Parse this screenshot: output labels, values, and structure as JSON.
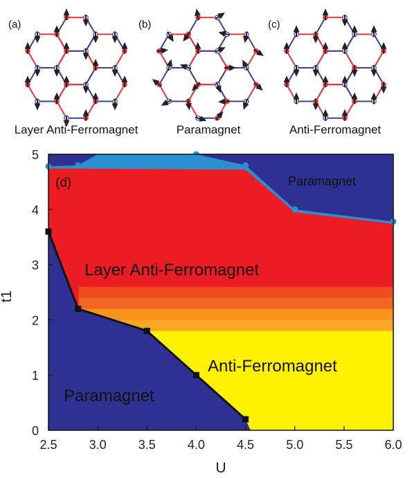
{
  "panels": [
    {
      "letter": "(a)",
      "caption": "Layer Anti-Ferromagnet"
    },
    {
      "letter": "(b)",
      "caption": "Paramagnet"
    },
    {
      "letter": "(c)",
      "caption": "Anti-Ferromagnet"
    }
  ],
  "colors": {
    "paramagnet": "#2e3192",
    "layer_afm": "#ec1c24",
    "afm": "#fff200",
    "boundary_blue": "#2b8fd0",
    "lattice_red": "#e8333b",
    "lattice_blue": "#3b3f9a",
    "gradient": [
      "#f04a23",
      "#f26522",
      "#f7941d",
      "#f9a825"
    ]
  },
  "chart_data": {
    "type": "area",
    "panel_label": "(d)",
    "xlabel": "U",
    "ylabel": "t1",
    "xlim": [
      2.5,
      6.0
    ],
    "ylim": [
      0,
      5
    ],
    "xticks": [
      "2.5",
      "3.0",
      "3.5",
      "4.0",
      "4.5",
      "5.0",
      "5.5",
      "6.0"
    ],
    "yticks": [
      "0",
      "1",
      "2",
      "3",
      "4",
      "5"
    ],
    "region_labels": {
      "layer_afm": "Layer Anti-Ferromagnet",
      "afm": "Anti-Ferromagnet",
      "para_low": "Paramagnet",
      "para_high": "Paramagnet"
    },
    "lower_boundary": [
      {
        "U": 2.5,
        "t1": 3.6
      },
      {
        "U": 2.8,
        "t1": 2.2
      },
      {
        "U": 3.5,
        "t1": 1.8
      },
      {
        "U": 4.0,
        "t1": 1.0
      },
      {
        "U": 4.5,
        "t1": 0.2
      }
    ],
    "upper_boundary": [
      {
        "U": 2.5,
        "t1": 4.78
      },
      {
        "U": 2.8,
        "t1": 4.8
      },
      {
        "U": 3.0,
        "t1": 5.0
      },
      {
        "U": 4.0,
        "t1": 5.0
      },
      {
        "U": 4.5,
        "t1": 4.8
      },
      {
        "U": 5.0,
        "t1": 4.0
      },
      {
        "U": 6.0,
        "t1": 3.78
      }
    ],
    "afm_region_top": 1.8,
    "afm_region_bottom_right_U": 4.55,
    "crossover_band": [
      1.8,
      2.6
    ]
  }
}
